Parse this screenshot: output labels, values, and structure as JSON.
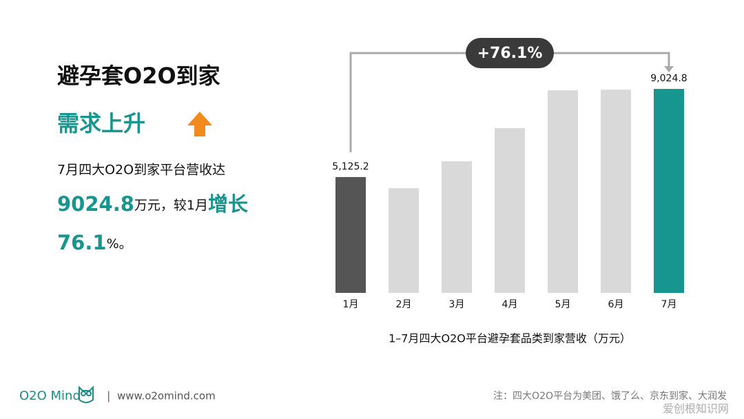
{
  "header": {
    "title": "避孕套O2O到家",
    "subtitle": "需求上升"
  },
  "summary": {
    "line1": "7月四大O2O到家平台营收达",
    "amount": "9024.8",
    "amount_unit": "万元，较1月",
    "growth_word": "增长",
    "growth": "76.1",
    "growth_unit": "%。"
  },
  "chart_data": {
    "type": "bar",
    "title": "1–7月四大O2O平台避孕套品类到家营收（万元）",
    "categories": [
      "1月",
      "2月",
      "3月",
      "4月",
      "5月",
      "6月",
      "7月"
    ],
    "values": [
      5125.2,
      4630,
      5820,
      7290,
      8960,
      8990,
      9024.8
    ],
    "value_labels": [
      "5,125.2",
      null,
      null,
      null,
      null,
      null,
      "9,024.8"
    ],
    "colors": [
      "#555555",
      "#d9d9d9",
      "#d9d9d9",
      "#d9d9d9",
      "#d9d9d9",
      "#d9d9d9",
      "#17958f"
    ],
    "annotation": "+76.1%"
  },
  "footer": {
    "brand": "O2O Mind",
    "separator": "|",
    "url": "www.o2omind.com",
    "note": "注：四大O2O平台为美团、饿了么、京东到家、大润发",
    "watermark": "爱创根知识网"
  }
}
